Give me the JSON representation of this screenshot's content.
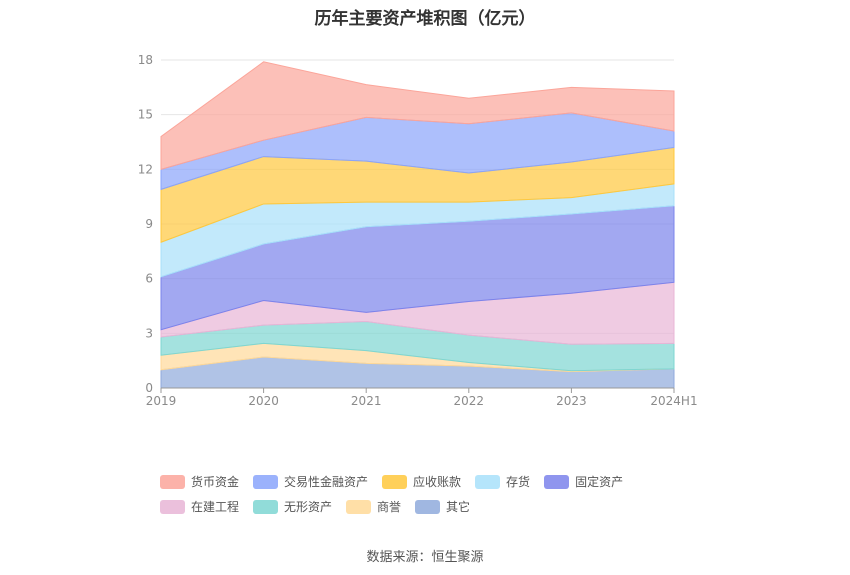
{
  "chart_data": {
    "type": "area",
    "stacked": true,
    "title": "历年主要资产堆积图（亿元）",
    "categories": [
      "2019",
      "2020",
      "2021",
      "2022",
      "2023",
      "2024H1"
    ],
    "ylim": [
      0,
      18
    ],
    "yticks": [
      0,
      3,
      6,
      9,
      12,
      15,
      18
    ],
    "grid": true,
    "legend_position": "bottom",
    "series": [
      {
        "name": "其它",
        "color": "#8faadc",
        "values": [
          1.0,
          1.7,
          1.35,
          1.2,
          0.9,
          1.05
        ]
      },
      {
        "name": "商誉",
        "color": "#ffd998",
        "values": [
          0.8,
          0.75,
          0.7,
          0.2,
          0.05,
          0.0
        ]
      },
      {
        "name": "无形资产",
        "color": "#7ed6d2",
        "values": [
          1.0,
          1.0,
          1.6,
          1.5,
          1.45,
          1.4
        ]
      },
      {
        "name": "在建工程",
        "color": "#e8b5d6",
        "values": [
          0.4,
          1.35,
          0.5,
          1.85,
          2.8,
          3.35
        ]
      },
      {
        "name": "固定资产",
        "color": "#7b83eb",
        "values": [
          2.9,
          3.1,
          4.7,
          4.4,
          4.35,
          4.2
        ]
      },
      {
        "name": "存货",
        "color": "#a8e0fa",
        "values": [
          1.9,
          2.2,
          1.35,
          1.05,
          0.9,
          1.2
        ]
      },
      {
        "name": "应收账款",
        "color": "#ffc83d",
        "values": [
          2.9,
          2.6,
          2.25,
          1.6,
          1.95,
          2.0
        ]
      },
      {
        "name": "交易性金融资产",
        "color": "#8aa4fb",
        "values": [
          1.1,
          0.9,
          2.4,
          2.7,
          2.7,
          0.9
        ]
      },
      {
        "name": "货币资金",
        "color": "#fba59a",
        "values": [
          1.8,
          4.3,
          1.8,
          1.4,
          1.4,
          2.2
        ]
      }
    ]
  },
  "legend_order": [
    "货币资金",
    "交易性金融资产",
    "应收账款",
    "存货",
    "固定资产",
    "在建工程",
    "无形资产",
    "商誉",
    "其它"
  ],
  "footer": {
    "source": "数据来源：恒生聚源"
  }
}
